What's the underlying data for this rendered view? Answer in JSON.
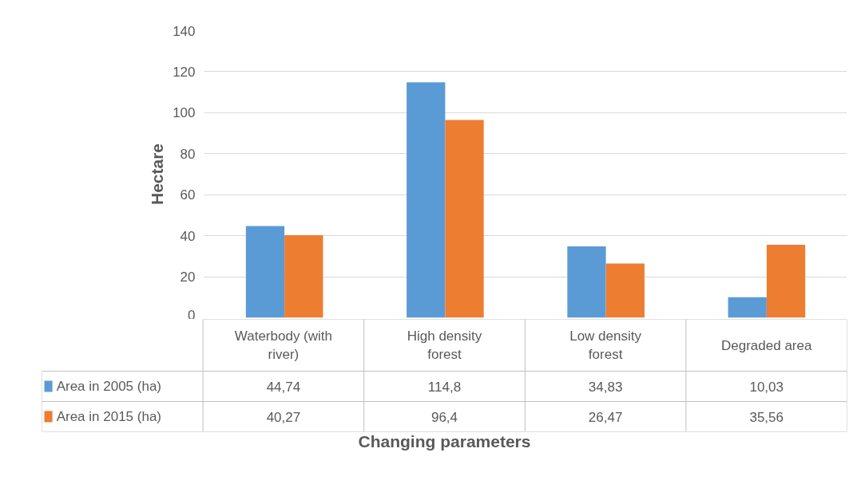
{
  "chart_data": {
    "type": "bar",
    "xlabel": "Changing parameters",
    "ylabel": "Hectare",
    "categories": [
      "Waterbody (with river)",
      "High density forest",
      "Low density forest",
      "Degraded area"
    ],
    "series": [
      {
        "name": "Area in 2005 (ha)",
        "color": "#5b9bd5",
        "values": [
          44.74,
          114.8,
          34.83,
          10.03
        ],
        "value_labels": [
          "44,74",
          "114,8",
          "34,83",
          "10,03"
        ]
      },
      {
        "name": "Area in 2015 (ha)",
        "color": "#ed7d31",
        "values": [
          40.27,
          96.4,
          26.47,
          35.56
        ],
        "value_labels": [
          "40,27",
          "96,4",
          "26,47",
          "35,56"
        ]
      }
    ],
    "ylim": [
      0,
      140
    ],
    "yticks": [
      0,
      20,
      40,
      60,
      80,
      100,
      120,
      140
    ],
    "grid": "y",
    "legend": "bottom"
  }
}
